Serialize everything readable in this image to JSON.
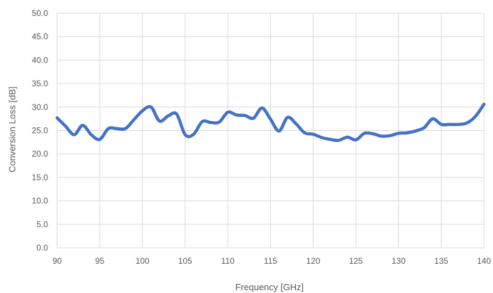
{
  "chart_data": {
    "type": "line",
    "title": "",
    "xlabel": "Frequency [GHz]",
    "ylabel": "Conversion Loss [dB]",
    "xlim": [
      90,
      140
    ],
    "ylim": [
      0,
      50
    ],
    "x_ticks": [
      "90",
      "95",
      "100",
      "105",
      "110",
      "115",
      "120",
      "125",
      "130",
      "135",
      "140"
    ],
    "y_ticks": [
      "0.0",
      "5.0",
      "10.0",
      "15.0",
      "20.0",
      "25.0",
      "30.0",
      "35.0",
      "40.0",
      "45.0",
      "50.0"
    ],
    "grid": true,
    "legend": "none",
    "series_color": "#4472c4",
    "series": [
      {
        "x": [
          90,
          91,
          92,
          93,
          94,
          95,
          96,
          97,
          98,
          99,
          100,
          101,
          102,
          103,
          104,
          105,
          106,
          107,
          108,
          109,
          110,
          111,
          112,
          113,
          114,
          115,
          116,
          117,
          118,
          119,
          120,
          121,
          122,
          123,
          124,
          125,
          126,
          127,
          128,
          129,
          130,
          131,
          132,
          133,
          134,
          135,
          136,
          137,
          138,
          139,
          140
        ],
        "y": [
          27.7,
          25.9,
          24.1,
          26.1,
          24.1,
          23.1,
          25.4,
          25.4,
          25.4,
          27.3,
          29.2,
          30.0,
          27.0,
          28.1,
          28.5,
          24.1,
          24.2,
          26.9,
          26.7,
          26.8,
          28.9,
          28.3,
          28.2,
          27.6,
          29.8,
          27.4,
          24.9,
          27.8,
          26.4,
          24.5,
          24.2,
          23.5,
          23.1,
          22.9,
          23.6,
          23.0,
          24.4,
          24.3,
          23.8,
          23.9,
          24.4,
          24.5,
          24.9,
          25.6,
          27.5,
          26.3,
          26.3,
          26.3,
          26.6,
          28.0,
          30.6
        ]
      }
    ]
  }
}
